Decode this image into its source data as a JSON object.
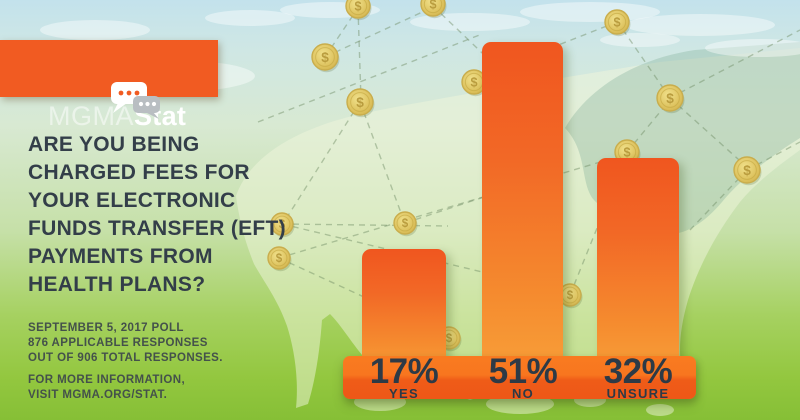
{
  "brand": {
    "name_light": "MGMA",
    "name_bold": "Stat"
  },
  "question": {
    "lines": [
      "ARE YOU BEING",
      "CHARGED FEES FOR",
      "YOUR ELECTRONIC",
      "FUNDS TRANSFER (EFT)",
      "PAYMENTS FROM",
      "HEALTH PLANS?"
    ]
  },
  "poll_info": {
    "lines": [
      "SEPTEMBER 5, 2017 POLL",
      "876 APPLICABLE RESPONSES",
      "OUT OF 906 TOTAL RESPONSES."
    ]
  },
  "footer": {
    "lines": [
      "FOR MORE INFORMATION,",
      "VISIT MGMA.ORG/STAT."
    ]
  },
  "chart_data": {
    "type": "bar",
    "title": "Are you being charged fees for your electronic funds transfer (EFT) payments from health plans?",
    "subtitle": "September 5, 2017 poll - 876 applicable responses out of 906 total responses.",
    "categories": [
      "YES",
      "NO",
      "UNSURE"
    ],
    "values": [
      17,
      51,
      32
    ],
    "unit": "%",
    "bars": [
      {
        "label": "YES",
        "value": 17,
        "display": "17%"
      },
      {
        "label": "NO",
        "value": 51,
        "display": "51%"
      },
      {
        "label": "UNSURE",
        "value": 32,
        "display": "32%"
      }
    ],
    "axes": "none",
    "legend": "none",
    "xlabel": "",
    "ylabel": ""
  },
  "icons": {
    "chat_bubbles": "chat-bubbles-icon",
    "coin": "dollar-coin-icon",
    "coin_symbol": "$"
  },
  "colors": {
    "accent_orange": "#f15b22",
    "bar_gradient_top": "#f0561f",
    "bar_gradient_bottom": "#f89f39",
    "base_bar_top": "#f97b20",
    "base_bar_bottom": "#ee5717",
    "background_green": "#8dc63f",
    "sky_blue": "#c3e2ec",
    "coin_gold": "#ddc25e",
    "text_dark": "#333e49",
    "text_on_orange": "#2d3a46",
    "logo_text": "#ffffff"
  }
}
